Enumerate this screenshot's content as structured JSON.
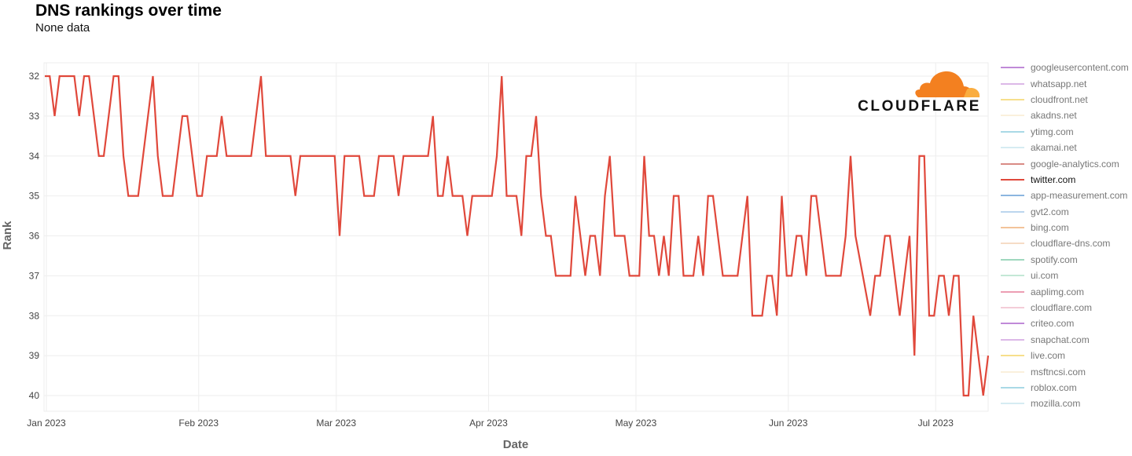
{
  "chart_data": {
    "type": "line",
    "title": "DNS rankings over time",
    "subtitle": "None data",
    "xlabel": "Date",
    "ylabel": "Rank",
    "x_unit": "days since 2023-01-01",
    "ylim": [
      32,
      40
    ],
    "y_inverted": true,
    "y_ticks": [
      "32",
      "33",
      "34",
      "35",
      "36",
      "37",
      "38",
      "39",
      "40"
    ],
    "x_ticks": [
      {
        "label": "Jan 2023",
        "day": 0
      },
      {
        "label": "Feb 2023",
        "day": 31
      },
      {
        "label": "Mar 2023",
        "day": 59
      },
      {
        "label": "Apr 2023",
        "day": 90
      },
      {
        "label": "May 2023",
        "day": 120
      },
      {
        "label": "Jun 2023",
        "day": 151
      },
      {
        "label": "Jul 2023",
        "day": 181
      }
    ],
    "grid": true,
    "legend_position": "right",
    "series": [
      {
        "name": "twitter.com",
        "color": "#e0483b",
        "points": [
          [
            0,
            32
          ],
          [
            1,
            32
          ],
          [
            2,
            33
          ],
          [
            3,
            32
          ],
          [
            6,
            32
          ],
          [
            7,
            33
          ],
          [
            8,
            32
          ],
          [
            9,
            32
          ],
          [
            11,
            34
          ],
          [
            12,
            34
          ],
          [
            14,
            32
          ],
          [
            15,
            32
          ],
          [
            16,
            34
          ],
          [
            17,
            35
          ],
          [
            19,
            35
          ],
          [
            22,
            32
          ],
          [
            23,
            34
          ],
          [
            24,
            35
          ],
          [
            26,
            35
          ],
          [
            28,
            33
          ],
          [
            29,
            33
          ],
          [
            31,
            35
          ],
          [
            32,
            35
          ],
          [
            33,
            34
          ],
          [
            35,
            34
          ],
          [
            36,
            33
          ],
          [
            37,
            34
          ],
          [
            42,
            34
          ],
          [
            44,
            32
          ],
          [
            45,
            34
          ],
          [
            50,
            34
          ],
          [
            51,
            35
          ],
          [
            52,
            34
          ],
          [
            59,
            34
          ],
          [
            60,
            36
          ],
          [
            61,
            34
          ],
          [
            64,
            34
          ],
          [
            65,
            35
          ],
          [
            67,
            35
          ],
          [
            68,
            34
          ],
          [
            71,
            34
          ],
          [
            72,
            35
          ],
          [
            73,
            34
          ],
          [
            78,
            34
          ],
          [
            79,
            33
          ],
          [
            80,
            35
          ],
          [
            81,
            35
          ],
          [
            82,
            34
          ],
          [
            83,
            35
          ],
          [
            85,
            35
          ],
          [
            86,
            36
          ],
          [
            87,
            35
          ],
          [
            91,
            35
          ],
          [
            92,
            34
          ],
          [
            93,
            32
          ],
          [
            94,
            35
          ],
          [
            96,
            35
          ],
          [
            97,
            36
          ],
          [
            98,
            34
          ],
          [
            99,
            34
          ],
          [
            100,
            33
          ],
          [
            101,
            35
          ],
          [
            102,
            36
          ],
          [
            103,
            36
          ],
          [
            104,
            37
          ],
          [
            107,
            37
          ],
          [
            108,
            35
          ],
          [
            110,
            37
          ],
          [
            111,
            36
          ],
          [
            112,
            36
          ],
          [
            113,
            37
          ],
          [
            114,
            35
          ],
          [
            115,
            34
          ],
          [
            116,
            36
          ],
          [
            118,
            36
          ],
          [
            119,
            37
          ],
          [
            121,
            37
          ],
          [
            122,
            34
          ],
          [
            123,
            36
          ],
          [
            124,
            36
          ],
          [
            125,
            37
          ],
          [
            126,
            36
          ],
          [
            127,
            37
          ],
          [
            128,
            35
          ],
          [
            129,
            35
          ],
          [
            130,
            37
          ],
          [
            132,
            37
          ],
          [
            133,
            36
          ],
          [
            134,
            37
          ],
          [
            135,
            35
          ],
          [
            136,
            35
          ],
          [
            138,
            37
          ],
          [
            141,
            37
          ],
          [
            143,
            35
          ],
          [
            144,
            38
          ],
          [
            146,
            38
          ],
          [
            147,
            37
          ],
          [
            148,
            37
          ],
          [
            149,
            38
          ],
          [
            150,
            35
          ],
          [
            151,
            37
          ],
          [
            152,
            37
          ],
          [
            153,
            36
          ],
          [
            154,
            36
          ],
          [
            155,
            37
          ],
          [
            156,
            35
          ],
          [
            157,
            35
          ],
          [
            159,
            37
          ],
          [
            162,
            37
          ],
          [
            163,
            36
          ],
          [
            164,
            34
          ],
          [
            165,
            36
          ],
          [
            168,
            38
          ],
          [
            169,
            37
          ],
          [
            170,
            37
          ],
          [
            171,
            36
          ],
          [
            172,
            36
          ],
          [
            174,
            38
          ],
          [
            176,
            36
          ],
          [
            177,
            39
          ],
          [
            178,
            34
          ],
          [
            179,
            34
          ],
          [
            180,
            38
          ],
          [
            181,
            38
          ],
          [
            182,
            37
          ],
          [
            183,
            37
          ],
          [
            184,
            38
          ],
          [
            185,
            37
          ],
          [
            186,
            37
          ],
          [
            187,
            40
          ],
          [
            188,
            40
          ],
          [
            189,
            38
          ],
          [
            191,
            40
          ],
          [
            192,
            39
          ]
        ]
      }
    ],
    "legend": [
      {
        "name": "googleusercontent.com",
        "color": "#c08ad8"
      },
      {
        "name": "whatsapp.net",
        "color": "#dcb8e8"
      },
      {
        "name": "cloudfront.net",
        "color": "#f7df8c"
      },
      {
        "name": "akadns.net",
        "color": "#faf0dc"
      },
      {
        "name": "ytimg.com",
        "color": "#a9d9e6"
      },
      {
        "name": "akamai.net",
        "color": "#d6ecf2"
      },
      {
        "name": "google-analytics.com",
        "color": "#d98b85"
      },
      {
        "name": "twitter.com",
        "color": "#e0483b"
      },
      {
        "name": "app-measurement.com",
        "color": "#8cb6e0"
      },
      {
        "name": "gvt2.com",
        "color": "#bcd6ee"
      },
      {
        "name": "bing.com",
        "color": "#f3c39a"
      },
      {
        "name": "cloudflare-dns.com",
        "color": "#f6dcc6"
      },
      {
        "name": "spotify.com",
        "color": "#9fd8be"
      },
      {
        "name": "ui.com",
        "color": "#c4e8d6"
      },
      {
        "name": "aaplimg.com",
        "color": "#ec9eb3"
      },
      {
        "name": "cloudflare.com",
        "color": "#f4cdd8"
      },
      {
        "name": "criteo.com",
        "color": "#c08ad8"
      },
      {
        "name": "snapchat.com",
        "color": "#dcb8e8"
      },
      {
        "name": "live.com",
        "color": "#f7df8c"
      },
      {
        "name": "msftncsi.com",
        "color": "#faf0dc"
      },
      {
        "name": "roblox.com",
        "color": "#a9d9e6"
      },
      {
        "name": "mozilla.com",
        "color": "#d6ecf2"
      }
    ]
  },
  "logo": {
    "text": "CLOUDFLARE",
    "colors": {
      "dark": "#f38020",
      "light": "#faad3f"
    }
  }
}
